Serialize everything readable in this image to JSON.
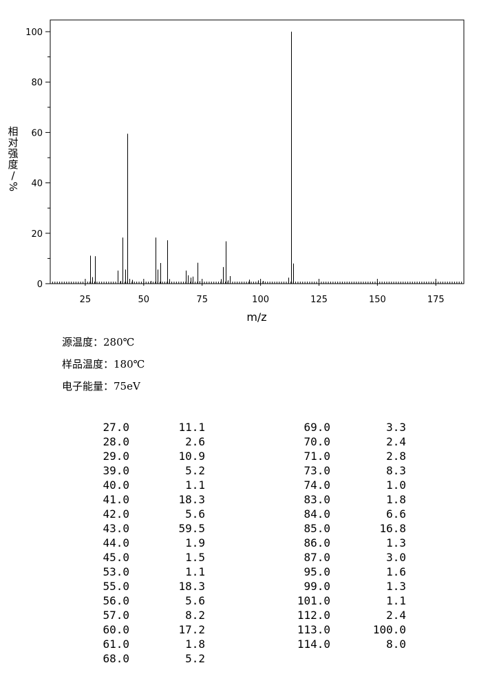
{
  "chart_data": {
    "type": "bar",
    "title": "",
    "xlabel": "m/z",
    "ylabel": [
      "相",
      "对",
      "强",
      "度",
      "/",
      "%"
    ],
    "xlim": [
      10,
      187
    ],
    "ylim": [
      0,
      105
    ],
    "x_ticks": [
      25,
      50,
      75,
      100,
      125,
      150,
      175
    ],
    "y_ticks": [
      0,
      20,
      40,
      60,
      80,
      100
    ],
    "grid": false,
    "peaks": [
      {
        "mz": 27.0,
        "intensity": 11.1
      },
      {
        "mz": 28.0,
        "intensity": 2.6
      },
      {
        "mz": 29.0,
        "intensity": 10.9
      },
      {
        "mz": 39.0,
        "intensity": 5.2
      },
      {
        "mz": 40.0,
        "intensity": 1.1
      },
      {
        "mz": 41.0,
        "intensity": 18.3
      },
      {
        "mz": 42.0,
        "intensity": 5.6
      },
      {
        "mz": 43.0,
        "intensity": 59.5
      },
      {
        "mz": 44.0,
        "intensity": 1.9
      },
      {
        "mz": 45.0,
        "intensity": 1.5
      },
      {
        "mz": 53.0,
        "intensity": 1.1
      },
      {
        "mz": 55.0,
        "intensity": 18.3
      },
      {
        "mz": 56.0,
        "intensity": 5.6
      },
      {
        "mz": 57.0,
        "intensity": 8.2
      },
      {
        "mz": 60.0,
        "intensity": 17.2
      },
      {
        "mz": 61.0,
        "intensity": 1.8
      },
      {
        "mz": 68.0,
        "intensity": 5.2
      },
      {
        "mz": 69.0,
        "intensity": 3.3
      },
      {
        "mz": 70.0,
        "intensity": 2.4
      },
      {
        "mz": 71.0,
        "intensity": 2.8
      },
      {
        "mz": 73.0,
        "intensity": 8.3
      },
      {
        "mz": 74.0,
        "intensity": 1.0
      },
      {
        "mz": 83.0,
        "intensity": 1.8
      },
      {
        "mz": 84.0,
        "intensity": 6.6
      },
      {
        "mz": 85.0,
        "intensity": 16.8
      },
      {
        "mz": 86.0,
        "intensity": 1.3
      },
      {
        "mz": 87.0,
        "intensity": 3.0
      },
      {
        "mz": 95.0,
        "intensity": 1.6
      },
      {
        "mz": 99.0,
        "intensity": 1.3
      },
      {
        "mz": 101.0,
        "intensity": 1.1
      },
      {
        "mz": 112.0,
        "intensity": 2.4
      },
      {
        "mz": 113.0,
        "intensity": 100.0
      },
      {
        "mz": 114.0,
        "intensity": 8.0
      }
    ]
  },
  "conditions": {
    "source_temp": "源温度：280℃",
    "sample_temp": "样品温度：180℃",
    "electron_energy": "电子能量：75eV"
  },
  "peak_table": {
    "left": [
      [
        "27.0",
        "11.1"
      ],
      [
        "28.0",
        "2.6"
      ],
      [
        "29.0",
        "10.9"
      ],
      [
        "39.0",
        "5.2"
      ],
      [
        "40.0",
        "1.1"
      ],
      [
        "41.0",
        "18.3"
      ],
      [
        "42.0",
        "5.6"
      ],
      [
        "43.0",
        "59.5"
      ],
      [
        "44.0",
        "1.9"
      ],
      [
        "45.0",
        "1.5"
      ],
      [
        "53.0",
        "1.1"
      ],
      [
        "55.0",
        "18.3"
      ],
      [
        "56.0",
        "5.6"
      ],
      [
        "57.0",
        "8.2"
      ],
      [
        "60.0",
        "17.2"
      ],
      [
        "61.0",
        "1.8"
      ],
      [
        "68.0",
        "5.2"
      ]
    ],
    "right": [
      [
        "69.0",
        "3.3"
      ],
      [
        "70.0",
        "2.4"
      ],
      [
        "71.0",
        "2.8"
      ],
      [
        "73.0",
        "8.3"
      ],
      [
        "74.0",
        "1.0"
      ],
      [
        "83.0",
        "1.8"
      ],
      [
        "84.0",
        "6.6"
      ],
      [
        "85.0",
        "16.8"
      ],
      [
        "86.0",
        "1.3"
      ],
      [
        "87.0",
        "3.0"
      ],
      [
        "95.0",
        "1.6"
      ],
      [
        "99.0",
        "1.3"
      ],
      [
        "101.0",
        "1.1"
      ],
      [
        "112.0",
        "2.4"
      ],
      [
        "113.0",
        "100.0"
      ],
      [
        "114.0",
        "8.0"
      ]
    ]
  }
}
